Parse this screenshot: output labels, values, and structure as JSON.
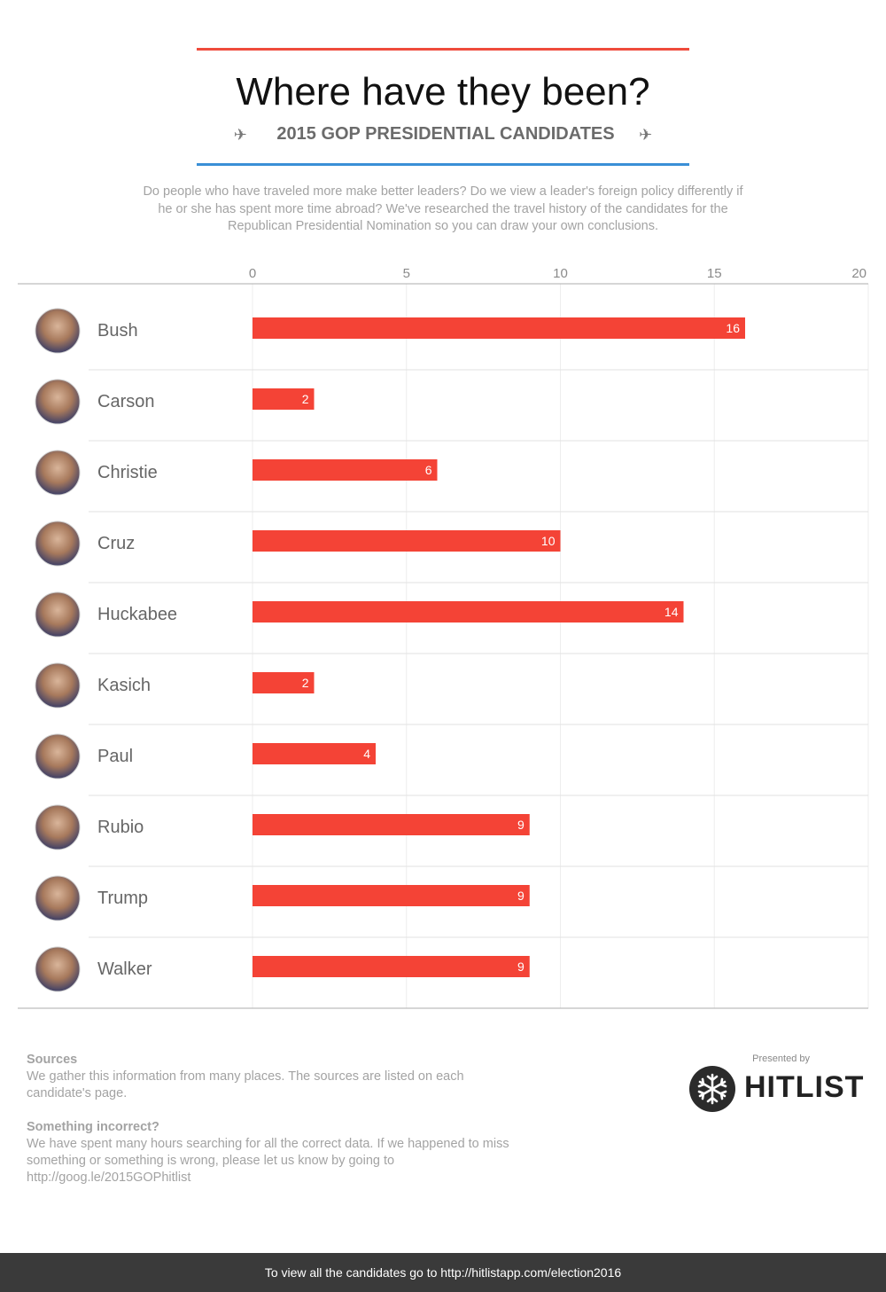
{
  "header": {
    "title": "Where have they been?",
    "subtitle": "2015 GOP PRESIDENTIAL CANDIDATES",
    "intro": "Do people who have traveled more make better leaders? Do we view a leader's foreign policy differently if he or she has spent more time abroad? We've researched the travel history of the candidates for the Republican Presidential Nomination so you can draw your own conclusions.",
    "plane_left_icon": "plane-left-icon",
    "plane_right_icon": "plane-right-icon",
    "accent_top": "#ef4b3c",
    "accent_bottom": "#3a8fd6"
  },
  "chart_data": {
    "type": "bar",
    "orientation": "horizontal",
    "title": "",
    "xlabel": "",
    "ylabel": "",
    "xlim": [
      0,
      20
    ],
    "ticks": [
      0,
      5,
      10,
      15,
      20
    ],
    "grid": true,
    "legend": "none",
    "bar_color": "#f44336",
    "categories": [
      "Bush",
      "Carson",
      "Christie",
      "Cruz",
      "Huckabee",
      "Kasich",
      "Paul",
      "Rubio",
      "Trump",
      "Walker"
    ],
    "values": [
      16,
      2,
      6,
      10,
      14,
      2,
      4,
      9,
      9,
      9
    ],
    "avatar_icon": "candidate-photo-icon"
  },
  "notes": {
    "sources_title": "Sources",
    "sources_text": "We gather this information from many places. The sources are listed on each candidate's page.",
    "incorrect_title": "Something incorrect?",
    "incorrect_text": "We have spent many hours searching for all the correct data. If we happened to miss something or something is wrong, please let us know by going to http://goog.le/2015GOPhitlist"
  },
  "brand": {
    "presented_by": "Presented by",
    "name": "HITLIST",
    "logo_icon": "snowflake-logo-icon"
  },
  "footer": {
    "text": "To view all the candidates go to http://hitlistapp.com/election2016"
  }
}
